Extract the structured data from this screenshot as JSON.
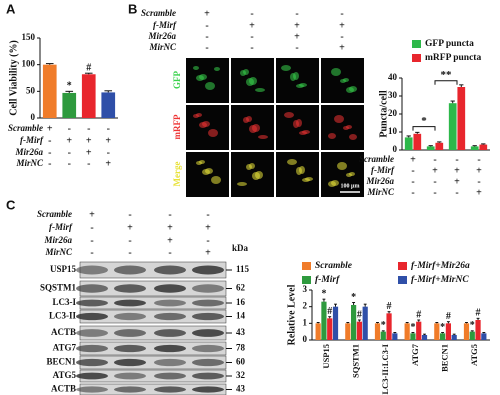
{
  "panel_labels": [
    "A",
    "B",
    "C"
  ],
  "chart_data": [
    {
      "type": "bar",
      "ylabel": "Cell Viability (%)",
      "values": [
        100,
        47,
        82,
        48
      ],
      "errors": [
        2,
        3,
        2,
        3
      ],
      "colors": [
        "#f07c2a",
        "#2e9a3e",
        "#e8262d",
        "#2f4fa8"
      ],
      "annotations": [
        null,
        "*",
        "#",
        null
      ],
      "ylim": [
        0,
        150
      ],
      "yticks": [
        0,
        50,
        100,
        150
      ]
    },
    {
      "type": "bar",
      "ylabel": "Puncta/cell",
      "legend": "top-right",
      "series": [
        {
          "name": "GFP puncta",
          "color": "#2db84a",
          "values": [
            7,
            2,
            26,
            2
          ],
          "errors": [
            0.8,
            0.4,
            1.2,
            0.4
          ]
        },
        {
          "name": "mRFP puncta",
          "color": "#e8262d",
          "values": [
            9,
            4,
            35,
            3
          ],
          "errors": [
            0.8,
            0.5,
            1.2,
            0.4
          ]
        }
      ],
      "brackets": [
        "*",
        "**"
      ],
      "ylim": [
        0,
        40
      ],
      "yticks": [
        0,
        10,
        20,
        30,
        40
      ]
    },
    {
      "type": "bar",
      "ylabel": "Relative Level",
      "legend": "top",
      "categories": [
        "USP15",
        "SQSTM1",
        "LC3-II:LC3-I",
        "ATG7",
        "BECN1",
        "ATG5"
      ],
      "series": [
        {
          "name": "Scramble",
          "color": "#f07c2a",
          "values": [
            1,
            1,
            1,
            1,
            1,
            1
          ],
          "errors": [
            0.05,
            0.05,
            0.05,
            0.05,
            0.05,
            0.05
          ],
          "annotations": [
            null,
            null,
            null,
            null,
            null,
            null
          ]
        },
        {
          "name": "f-Mirf",
          "color": "#2e9a3e",
          "values": [
            2.3,
            2.1,
            0.5,
            0.4,
            0.4,
            0.5
          ],
          "errors": [
            0.15,
            0.15,
            0.05,
            0.05,
            0.05,
            0.05
          ],
          "annotations": [
            "*",
            "*",
            "*",
            "*",
            "*",
            "*"
          ]
        },
        {
          "name": "f-Mirf+Mir26a",
          "color": "#e8262d",
          "values": [
            1.3,
            1.1,
            1.6,
            1.1,
            1.0,
            1.2
          ],
          "errors": [
            0.1,
            0.1,
            0.1,
            0.1,
            0.1,
            0.1
          ],
          "annotations": [
            "#",
            "#",
            "#",
            "#",
            "#",
            "#"
          ]
        },
        {
          "name": "f-Mirf+MirNC",
          "color": "#2f4fa8",
          "values": [
            2.0,
            2.0,
            0.4,
            0.3,
            0.3,
            0.4
          ],
          "errors": [
            0.15,
            0.15,
            0.05,
            0.05,
            0.05,
            0.05
          ],
          "annotations": [
            null,
            null,
            null,
            null,
            null,
            null
          ]
        }
      ],
      "ylim": [
        0,
        3
      ],
      "yticks": [
        0,
        1,
        2,
        3
      ]
    }
  ],
  "treatments": {
    "a": [
      {
        "label": "Scramble",
        "cells": [
          "+",
          "-",
          "-",
          "-"
        ]
      },
      {
        "label": "f-Mirf",
        "cells": [
          "-",
          "+",
          "+",
          "+"
        ]
      },
      {
        "label": "Mir26a",
        "cells": [
          "-",
          "-",
          "+",
          "-"
        ]
      },
      {
        "label": "MirNC",
        "cells": [
          "-",
          "-",
          "-",
          "+"
        ]
      }
    ],
    "b_top": [
      {
        "label": "Scramble",
        "cells": [
          "+",
          "-",
          "-",
          "-"
        ]
      },
      {
        "label": "f-Mirf",
        "cells": [
          "-",
          "+",
          "+",
          "+"
        ]
      },
      {
        "label": "Mir26a",
        "cells": [
          "-",
          "-",
          "+",
          "-"
        ]
      },
      {
        "label": "MirNC",
        "cells": [
          "-",
          "-",
          "-",
          "+"
        ]
      }
    ],
    "b_chart": [
      {
        "label": "Scramble",
        "cells": [
          "+",
          "-",
          "-",
          "-"
        ]
      },
      {
        "label": "f-Mirf",
        "cells": [
          "-",
          "+",
          "+",
          "+"
        ]
      },
      {
        "label": "Mir26a",
        "cells": [
          "-",
          "-",
          "+",
          "-"
        ]
      },
      {
        "label": "MirNC",
        "cells": [
          "-",
          "-",
          "-",
          "+"
        ]
      }
    ],
    "c": [
      {
        "label": "Scramble",
        "cells": [
          "+",
          "-",
          "-",
          "-"
        ]
      },
      {
        "label": "f-Mirf",
        "cells": [
          "-",
          "+",
          "+",
          "+"
        ]
      },
      {
        "label": "Mir26a",
        "cells": [
          "-",
          "-",
          "+",
          "-"
        ]
      },
      {
        "label": "MirNC",
        "cells": [
          "-",
          "-",
          "-",
          "+"
        ]
      }
    ]
  },
  "images": {
    "row_labels": [
      "GFP",
      "mRFP",
      "Merge"
    ],
    "scale_bar": "100 μm"
  },
  "blots": {
    "unit": "kDa",
    "bands": [
      {
        "label": "USP15",
        "kda": 115
      },
      {
        "label": "SQSTM1",
        "kda": 62
      },
      {
        "label": "LC3-I",
        "kda": 16
      },
      {
        "label": "LC3-II",
        "kda": 14
      },
      {
        "label": "ACTB",
        "kda": 43
      },
      {
        "label": "ATG7",
        "kda": 78
      },
      {
        "label": "BECN1",
        "kda": 60
      },
      {
        "label": "ATG5",
        "kda": 32
      },
      {
        "label": "ACTB",
        "kda": 43
      }
    ]
  }
}
